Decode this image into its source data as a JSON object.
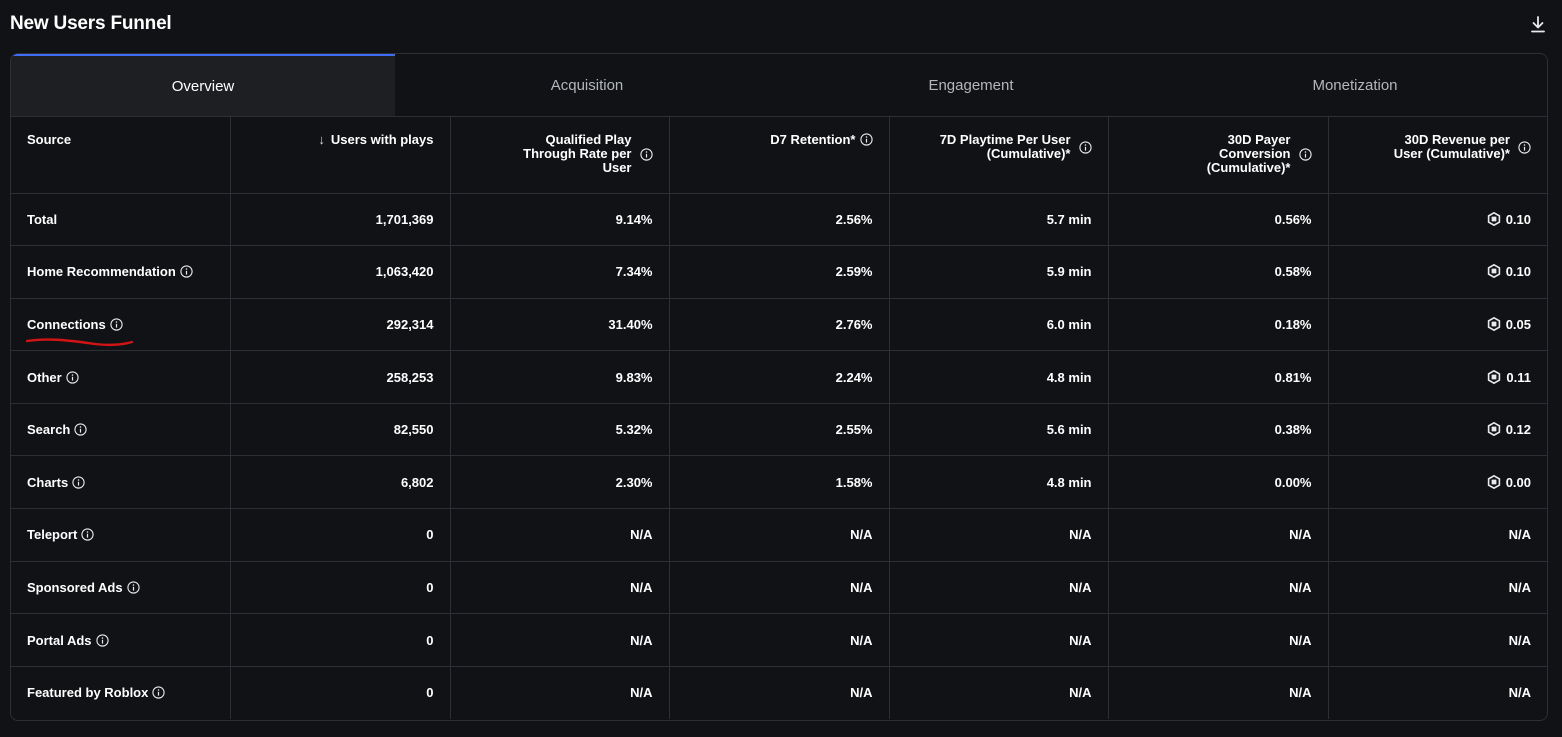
{
  "title": "New Users Funnel",
  "icons": {
    "download": "download-icon",
    "info": "info-icon",
    "robux": "robux-icon",
    "sort": "sort-down-arrow-icon"
  },
  "colors": {
    "accent": "#3d6ef5",
    "annotation": "#d21414"
  },
  "tabs": [
    {
      "label": "Overview",
      "active": true
    },
    {
      "label": "Acquisition",
      "active": false
    },
    {
      "label": "Engagement",
      "active": false
    },
    {
      "label": "Monetization",
      "active": false
    }
  ],
  "columns": [
    {
      "label": "Source"
    },
    {
      "label": "Users with plays",
      "sort_arrow": "↓"
    },
    {
      "label": "Qualified Play Through Rate per User"
    },
    {
      "label": "D7 Retention*"
    },
    {
      "label": "7D Playtime Per User (Cumulative)*"
    },
    {
      "label": "30D Payer Conversion (Cumulative)*"
    },
    {
      "label": "30D Revenue per User (Cumulative)*"
    }
  ],
  "rows": [
    {
      "source": "Total",
      "users": "1,701,369",
      "qptr": "9.14%",
      "d7": "2.56%",
      "playtime": "5.7 min",
      "payer": "0.56%",
      "revenue": "0.10",
      "revenue_robux": true
    },
    {
      "source": "Home Recommendation",
      "users": "1,063,420",
      "qptr": "7.34%",
      "d7": "2.59%",
      "playtime": "5.9 min",
      "payer": "0.58%",
      "revenue": "0.10",
      "revenue_robux": true
    },
    {
      "source": "Connections",
      "users": "292,314",
      "qptr": "31.40%",
      "d7": "2.76%",
      "playtime": "6.0 min",
      "payer": "0.18%",
      "revenue": "0.05",
      "revenue_robux": true
    },
    {
      "source": "Other",
      "users": "258,253",
      "qptr": "9.83%",
      "d7": "2.24%",
      "playtime": "4.8 min",
      "payer": "0.81%",
      "revenue": "0.11",
      "revenue_robux": true
    },
    {
      "source": "Search",
      "users": "82,550",
      "qptr": "5.32%",
      "d7": "2.55%",
      "playtime": "5.6 min",
      "payer": "0.38%",
      "revenue": "0.12",
      "revenue_robux": true
    },
    {
      "source": "Charts",
      "users": "6,802",
      "qptr": "2.30%",
      "d7": "1.58%",
      "playtime": "4.8 min",
      "payer": "0.00%",
      "revenue": "0.00",
      "revenue_robux": true
    },
    {
      "source": "Teleport",
      "users": "0",
      "qptr": "N/A",
      "d7": "N/A",
      "playtime": "N/A",
      "payer": "N/A",
      "revenue": "N/A",
      "revenue_robux": false
    },
    {
      "source": "Sponsored Ads",
      "users": "0",
      "qptr": "N/A",
      "d7": "N/A",
      "playtime": "N/A",
      "payer": "N/A",
      "revenue": "N/A",
      "revenue_robux": false
    },
    {
      "source": "Portal Ads",
      "users": "0",
      "qptr": "N/A",
      "d7": "N/A",
      "playtime": "N/A",
      "payer": "N/A",
      "revenue": "N/A",
      "revenue_robux": false
    },
    {
      "source": "Featured by Roblox",
      "users": "0",
      "qptr": "N/A",
      "d7": "N/A",
      "playtime": "N/A",
      "payer": "N/A",
      "revenue": "N/A",
      "revenue_robux": false
    }
  ]
}
